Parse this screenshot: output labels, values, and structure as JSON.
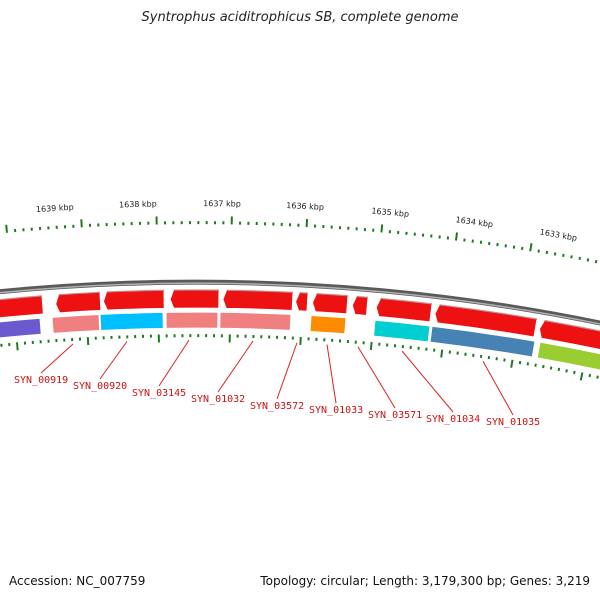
{
  "title": "Syntrophus aciditrophicus SB, complete genome",
  "accession": "Accession: NC_007759",
  "topology": "Topology: circular; Length: 3,179,300 bp; Genes: 3,219",
  "colors": {
    "backbone": "#8a8a8a",
    "tick": "#1f7a1f",
    "label_line": "#dd2222",
    "label_text": "#cc1111"
  },
  "kbp_markers": [
    "1639 kbp",
    "1638 kbp",
    "1637 kbp",
    "1636 kbp",
    "1635 kbp",
    "1634 kbp",
    "1633 kbp"
  ],
  "forward_features": [
    {
      "color": "#ee1111",
      "direction": "left"
    },
    {
      "color": "#ee1111",
      "direction": "left"
    },
    {
      "color": "#ee1111",
      "direction": "left"
    },
    {
      "color": "#ee1111",
      "direction": "left"
    },
    {
      "color": "#ee1111",
      "direction": "left"
    },
    {
      "color": "#ee1111",
      "direction": "left"
    },
    {
      "color": "#ee1111",
      "direction": "left"
    },
    {
      "color": "#ee1111",
      "direction": "left"
    },
    {
      "color": "#ee1111",
      "direction": "left"
    },
    {
      "color": "#ee1111",
      "direction": "left"
    }
  ],
  "category_features": [
    {
      "color": "#6a5acd"
    },
    {
      "color": "#f08080"
    },
    {
      "color": "#00bfff"
    },
    {
      "color": "#f08080"
    },
    {
      "color": "#f08080"
    },
    {
      "color": "#ff8c00"
    },
    {
      "color": "#00ced1"
    },
    {
      "color": "#4682b4"
    },
    {
      "color": "#9acd32"
    }
  ],
  "gene_labels": [
    "SYN_00919",
    "SYN_00920",
    "SYN_03145",
    "SYN_01032",
    "SYN_03572",
    "SYN_01033",
    "SYN_03571",
    "SYN_01034",
    "SYN_01035"
  ]
}
